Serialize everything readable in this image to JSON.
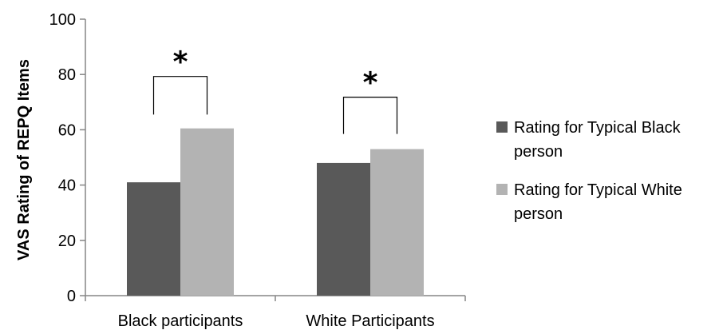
{
  "chart_data": {
    "type": "bar",
    "title": "",
    "xlabel": "",
    "ylabel": "VAS Rating of REPQ Items",
    "ylim": [
      0,
      100
    ],
    "yticks": [
      0,
      20,
      40,
      60,
      80,
      100
    ],
    "grid": false,
    "legend_position": "right",
    "categories": [
      "Black participants",
      "White Participants"
    ],
    "series": [
      {
        "name": "Rating for Typical Black person",
        "color": "#595959",
        "values": [
          41,
          48
        ]
      },
      {
        "name": "Rating for Typical White person",
        "color": "#b3b3b3",
        "values": [
          60.5,
          53
        ]
      }
    ],
    "significance": [
      {
        "category_index": 0,
        "marker": "*"
      },
      {
        "category_index": 1,
        "marker": "*"
      }
    ]
  }
}
